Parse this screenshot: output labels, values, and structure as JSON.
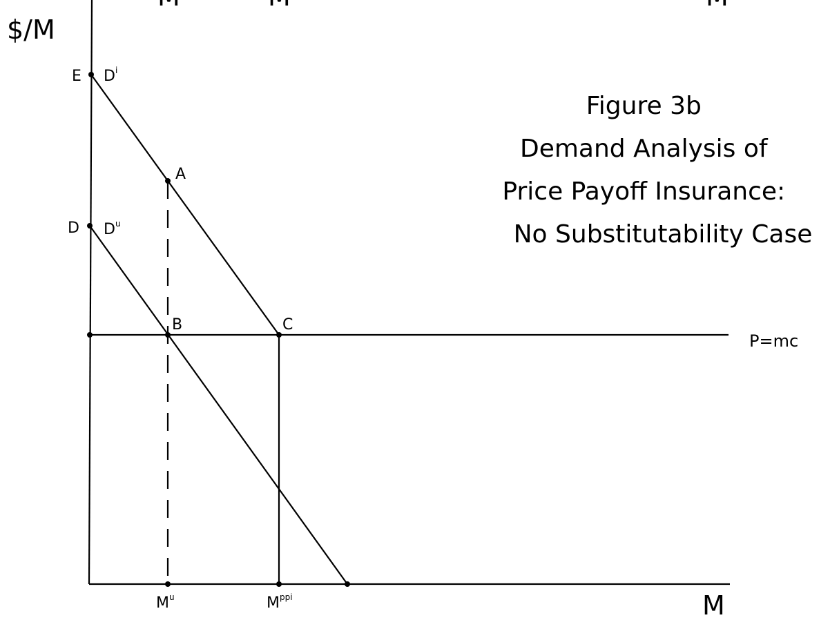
{
  "figure": {
    "title_lines": [
      "Figure 3b",
      "Demand Analysis of",
      "Price Payoff Insurance:",
      "No Substitutability Case"
    ]
  },
  "axes": {
    "y_label": "$/M",
    "x_label": "M"
  },
  "points": {
    "E": "E",
    "D": "D",
    "A": "A",
    "B": "B",
    "C": "C"
  },
  "curves": {
    "insured_demand": {
      "base": "D",
      "sup": "i"
    },
    "uninsured_demand": {
      "base": "D",
      "sup": "u"
    },
    "price_line": "P=mc"
  },
  "x_ticks": {
    "m_u": {
      "base": "M",
      "sup": "u"
    },
    "m_ppi": {
      "base": "M",
      "sup": "ppi"
    }
  },
  "top_edge_fragments": {
    "left_1": "M",
    "left_2": "M",
    "right": "M"
  },
  "colors": {
    "line": "#000000",
    "background": "#ffffff"
  }
}
